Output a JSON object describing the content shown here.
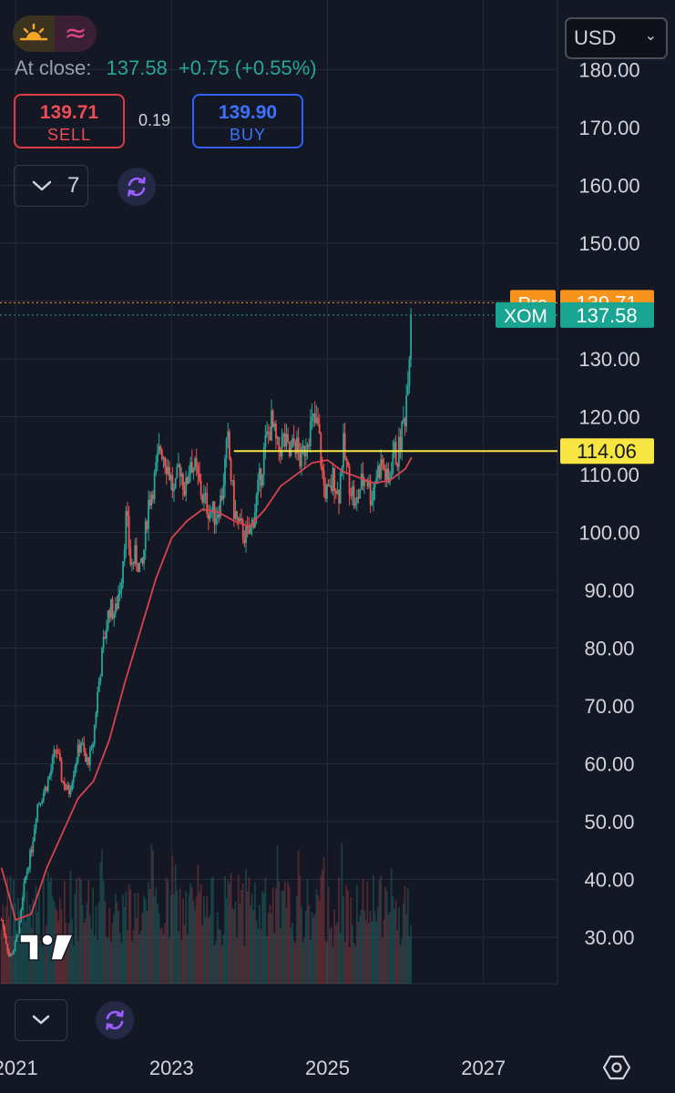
{
  "header": {
    "session_icons": [
      "sun-icon",
      "wave-icon"
    ],
    "at_close_label": "At close:",
    "close_price": "137.58",
    "change": "+0.75 (+0.55%)",
    "sell_price": "139.71",
    "sell_label": "SELL",
    "spread": "0.19",
    "buy_price": "139.90",
    "buy_label": "BUY",
    "interval": "7",
    "currency": "USD"
  },
  "colors": {
    "background": "#141824",
    "up": "#26a69a",
    "down": "#ef5350",
    "ma_line": "#d9424f",
    "horizontal_line": "#f7e541",
    "pre_tag": "#f7931a",
    "xom_tag": "#1aa592",
    "sell": "#e03a45",
    "buy": "#2e62ff"
  },
  "chart_data": {
    "type": "candlestick",
    "symbol": "XOM",
    "x_ticks": [
      "2021",
      "2023",
      "2025",
      "2027"
    ],
    "y_ticks": [
      "30.00",
      "40.00",
      "50.00",
      "60.00",
      "70.00",
      "80.00",
      "90.00",
      "100.00",
      "110.00",
      "120.00",
      "130.00",
      "140.00",
      "150.00",
      "160.00",
      "170.00",
      "180.00"
    ],
    "ylim": [
      21.5,
      184.5
    ],
    "xlim": [
      2020.8,
      2027.95
    ],
    "grid": true,
    "price_path": [
      [
        2020.82,
        33
      ],
      [
        2020.92,
        26.5
      ],
      [
        2020.98,
        28
      ],
      [
        2021.05,
        32
      ],
      [
        2021.12,
        40
      ],
      [
        2021.2,
        45
      ],
      [
        2021.28,
        53
      ],
      [
        2021.36,
        55
      ],
      [
        2021.44,
        58
      ],
      [
        2021.52,
        63
      ],
      [
        2021.6,
        57
      ],
      [
        2021.68,
        55
      ],
      [
        2021.76,
        60
      ],
      [
        2021.84,
        64
      ],
      [
        2021.9,
        60
      ],
      [
        2021.98,
        62
      ],
      [
        2022.05,
        72
      ],
      [
        2022.12,
        80
      ],
      [
        2022.2,
        87
      ],
      [
        2022.28,
        86
      ],
      [
        2022.36,
        93
      ],
      [
        2022.42,
        103
      ],
      [
        2022.48,
        94
      ],
      [
        2022.54,
        96
      ],
      [
        2022.62,
        93
      ],
      [
        2022.7,
        105
      ],
      [
        2022.78,
        109
      ],
      [
        2022.86,
        115
      ],
      [
        2022.92,
        113
      ],
      [
        2022.98,
        110
      ],
      [
        2023.04,
        106
      ],
      [
        2023.1,
        112
      ],
      [
        2023.18,
        107
      ],
      [
        2023.24,
        113
      ],
      [
        2023.32,
        110
      ],
      [
        2023.4,
        106
      ],
      [
        2023.48,
        104
      ],
      [
        2023.56,
        103
      ],
      [
        2023.64,
        106
      ],
      [
        2023.72,
        116
      ],
      [
        2023.8,
        104
      ],
      [
        2023.86,
        101
      ],
      [
        2023.92,
        100
      ],
      [
        2023.98,
        99
      ],
      [
        2024.04,
        102
      ],
      [
        2024.12,
        108
      ],
      [
        2024.2,
        115
      ],
      [
        2024.28,
        119
      ],
      [
        2024.36,
        114
      ],
      [
        2024.44,
        116
      ],
      [
        2024.52,
        113
      ],
      [
        2024.58,
        116
      ],
      [
        2024.66,
        112
      ],
      [
        2024.74,
        117
      ],
      [
        2024.82,
        119
      ],
      [
        2024.88,
        118
      ],
      [
        2024.95,
        108
      ],
      [
        2025.02,
        106
      ],
      [
        2025.08,
        110
      ],
      [
        2025.14,
        106
      ],
      [
        2025.2,
        115
      ],
      [
        2025.26,
        110
      ],
      [
        2025.32,
        107
      ],
      [
        2025.36,
        104
      ],
      [
        2025.42,
        108
      ],
      [
        2025.5,
        110
      ],
      [
        2025.56,
        106
      ],
      [
        2025.62,
        110
      ],
      [
        2025.7,
        112
      ],
      [
        2025.78,
        108
      ],
      [
        2025.84,
        114
      ],
      [
        2025.9,
        113
      ],
      [
        2025.96,
        118
      ],
      [
        2026.0,
        121
      ],
      [
        2026.04,
        130
      ],
      [
        2026.08,
        137.58
      ]
    ],
    "moving_average": [
      [
        2020.82,
        42
      ],
      [
        2020.9,
        38
      ],
      [
        2021.0,
        33
      ],
      [
        2021.2,
        34
      ],
      [
        2021.4,
        42
      ],
      [
        2021.6,
        48
      ],
      [
        2021.8,
        54
      ],
      [
        2022.0,
        57
      ],
      [
        2022.2,
        64
      ],
      [
        2022.4,
        74
      ],
      [
        2022.6,
        83
      ],
      [
        2022.8,
        92
      ],
      [
        2023.0,
        99
      ],
      [
        2023.2,
        102
      ],
      [
        2023.4,
        104
      ],
      [
        2023.6,
        103.5
      ],
      [
        2023.8,
        102
      ],
      [
        2024.0,
        101
      ],
      [
        2024.2,
        104
      ],
      [
        2024.4,
        108
      ],
      [
        2024.6,
        110
      ],
      [
        2024.8,
        112
      ],
      [
        2025.0,
        112.5
      ],
      [
        2025.2,
        110.5
      ],
      [
        2025.4,
        109.5
      ],
      [
        2025.6,
        108.5
      ],
      [
        2025.8,
        109
      ],
      [
        2026.0,
        111
      ],
      [
        2026.08,
        113
      ]
    ],
    "volume_note": "volume histogram shown along the bottom of the plot",
    "horizontal_line": {
      "value": 114.06,
      "label": "114.06",
      "start_x": 2023.8
    },
    "pre_market": {
      "label": "Pre",
      "value": "139.71"
    },
    "last_price": {
      "label": "XOM",
      "value": "137.58"
    }
  },
  "footer": {
    "settings_icon": "hexagon-gear-icon",
    "logo": "tradingview-logo"
  }
}
